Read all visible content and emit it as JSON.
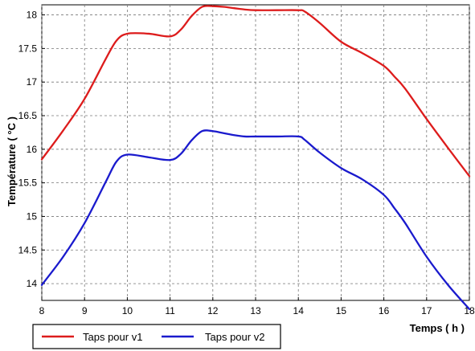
{
  "chart_data": {
    "type": "line",
    "title": "",
    "xlabel": "Temps ( h )",
    "ylabel": "Température ( °C )",
    "xlim": [
      8,
      18
    ],
    "ylim": [
      13.75,
      18.15
    ],
    "xticks": [
      "8",
      "9",
      "10",
      "11",
      "12",
      "13",
      "14",
      "15",
      "16",
      "17",
      "18"
    ],
    "yticks": [
      "14",
      "14.5",
      "15",
      "15.5",
      "16",
      "16.5",
      "17",
      "17.5",
      "18"
    ],
    "grid": true,
    "legend_position": "bottom-left",
    "series": [
      {
        "name": "Taps pour v1",
        "color": "#dd1c1c",
        "x": [
          8,
          8.5,
          9,
          9.5,
          9.75,
          10,
          10.5,
          11,
          11.25,
          11.5,
          11.75,
          12,
          12.25,
          12.5,
          12.75,
          13,
          13.5,
          14,
          14.15,
          14.5,
          15,
          15.5,
          16,
          16.25,
          16.5,
          17,
          17.5,
          18
        ],
        "y": [
          15.85,
          16.28,
          16.75,
          17.35,
          17.62,
          17.72,
          17.72,
          17.68,
          17.78,
          17.98,
          18.12,
          18.13,
          18.12,
          18.1,
          18.08,
          18.07,
          18.07,
          18.07,
          18.05,
          17.88,
          17.6,
          17.43,
          17.24,
          17.08,
          16.9,
          16.45,
          16.02,
          15.6
        ]
      },
      {
        "name": "Taps pour v2",
        "color": "#1a1acd",
        "x": [
          8,
          8.5,
          9,
          9.5,
          9.75,
          10,
          10.5,
          11,
          11.25,
          11.5,
          11.75,
          12,
          12.25,
          12.5,
          12.75,
          13,
          13.5,
          14,
          14.15,
          14.5,
          15,
          15.5,
          16,
          16.25,
          16.5,
          17,
          17.5,
          18
        ],
        "y": [
          13.98,
          14.4,
          14.9,
          15.52,
          15.82,
          15.92,
          15.88,
          15.84,
          15.93,
          16.13,
          16.27,
          16.27,
          16.24,
          16.21,
          16.19,
          16.19,
          16.19,
          16.19,
          16.14,
          15.95,
          15.72,
          15.55,
          15.32,
          15.12,
          14.9,
          14.4,
          13.98,
          13.62
        ]
      }
    ]
  }
}
